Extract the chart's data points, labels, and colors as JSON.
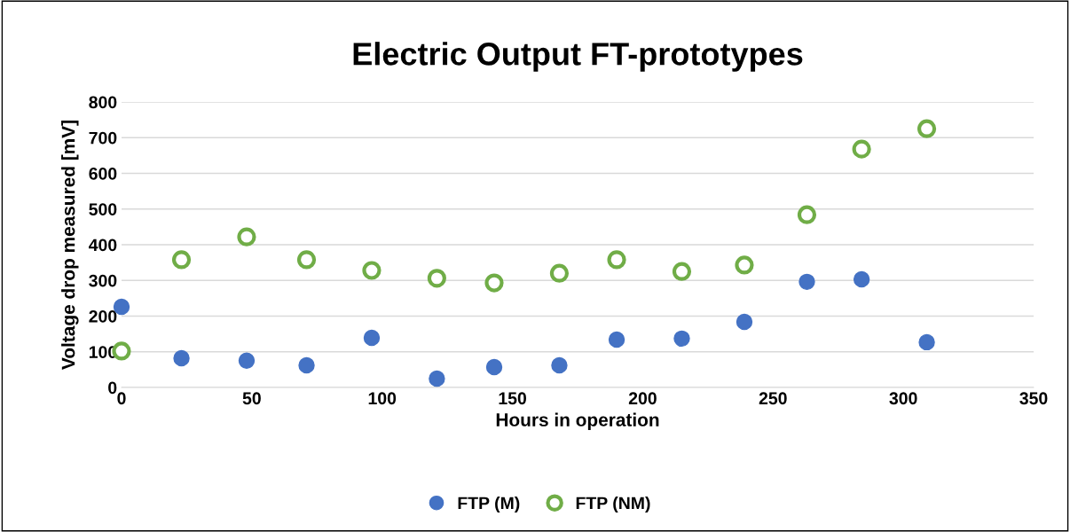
{
  "chart_data": {
    "type": "scatter",
    "title": "Electric Output FT-prototypes",
    "xlabel": "Hours in operation",
    "ylabel": "Voltage drop measured [mV]",
    "x": [
      0,
      23,
      48,
      71,
      96,
      121,
      143,
      168,
      190,
      215,
      239,
      263,
      284,
      309
    ],
    "series": [
      {
        "name": "FTP (M)",
        "color": "#4472c4",
        "marker": "circle",
        "values": [
          226,
          82,
          75,
          62,
          139,
          25,
          57,
          62,
          134,
          137,
          184,
          296,
          303,
          127
        ]
      },
      {
        "name": "FTP (NM)",
        "color": "#70ad47",
        "marker": "circle",
        "values": [
          102,
          358,
          422,
          358,
          328,
          306,
          293,
          320,
          358,
          325,
          343,
          484,
          668,
          725
        ]
      }
    ],
    "xlim": [
      0,
      350
    ],
    "xticks": [
      0,
      50,
      100,
      150,
      200,
      250,
      300,
      350
    ],
    "ylim": [
      0,
      800
    ],
    "yticks": [
      0,
      100,
      200,
      300,
      400,
      500,
      600,
      700,
      800
    ],
    "grid": "y",
    "legend": "bottom"
  }
}
